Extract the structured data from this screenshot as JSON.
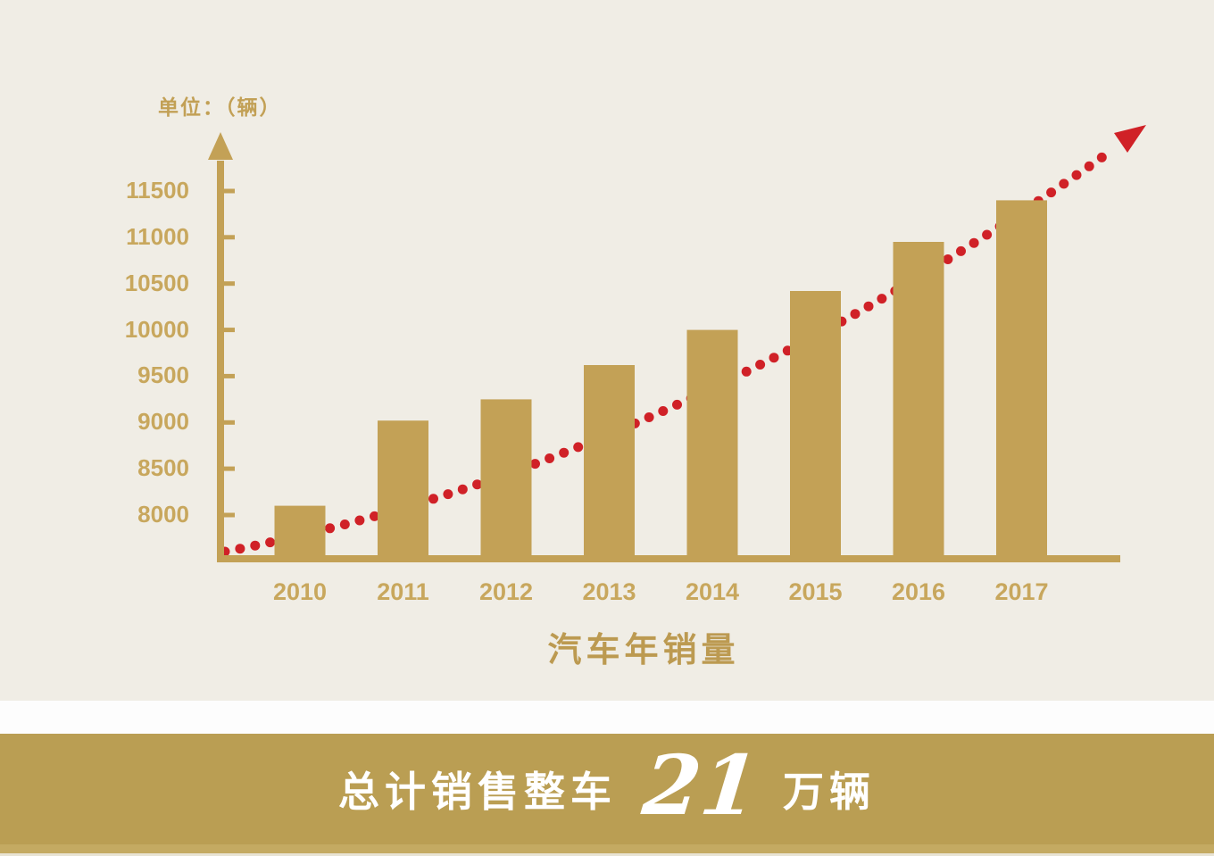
{
  "page": {
    "background": "#f0ede5",
    "gap_color": "#fdfdfd"
  },
  "chart_data": {
    "type": "bar",
    "title": "汽车年销量",
    "unit_label": "单位：（辆）",
    "categories": [
      "2010",
      "2011",
      "2012",
      "2013",
      "2014",
      "2015",
      "2016",
      "2017"
    ],
    "values": [
      8100,
      9020,
      9250,
      9620,
      10000,
      10420,
      10950,
      11400
    ],
    "yticks": [
      8000,
      8500,
      9000,
      9500,
      10000,
      10500,
      11000,
      11500
    ],
    "ylim": [
      7570,
      11900
    ],
    "grid": false,
    "legend": false,
    "bar_color": "#c3a156",
    "axis_color": "#c3a156",
    "tick_label_color": "#c8a75d",
    "title_color": "#bc9a51",
    "trend": {
      "style": "dotted",
      "color": "#d02127",
      "arrow": true
    }
  },
  "banner": {
    "prefix": "总计销售整车",
    "number": "21",
    "suffix": "万辆",
    "background": "#ba9e53",
    "strip_color": "#c4aa62",
    "bottom_edge_color": "#e8e3d3",
    "text_color": "#ffffff"
  }
}
